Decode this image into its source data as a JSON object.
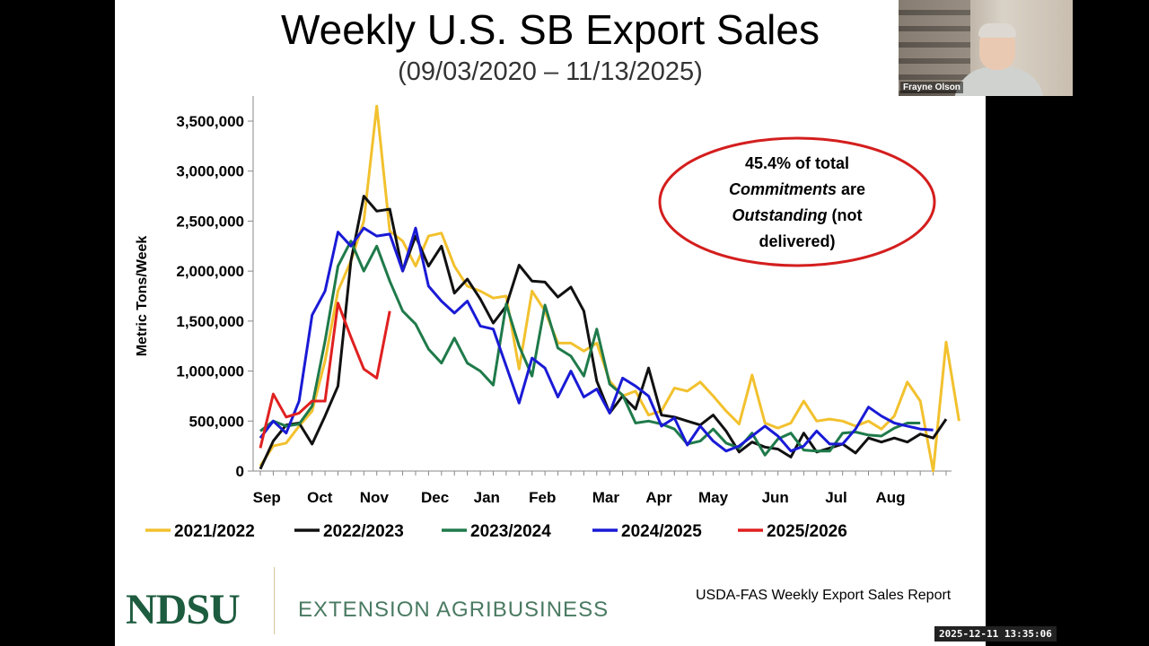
{
  "slide": {
    "title": "Weekly U.S. SB Export Sales",
    "subtitle": "(09/03/2020 – 11/13/2025)",
    "annotation": {
      "line1": "45.4% of total",
      "line2_em": "Commitments",
      "line2_rest": " are",
      "line3_em": "Outstanding",
      "line3_rest": " (not",
      "line4": "delivered)"
    },
    "logo": "NDSU",
    "department": "EXTENSION AGRIBUSINESS",
    "source": "USDA-FAS Weekly Export Sales Report"
  },
  "webcam": {
    "name": "Frayne Olson"
  },
  "timestamp": "2025-12-11 13:35:06",
  "chart_data": {
    "type": "line",
    "ylabel": "Metric Tons/Week",
    "ylim": [
      0,
      3500000
    ],
    "yticks": [
      0,
      500000,
      1000000,
      1500000,
      2000000,
      2500000,
      3000000,
      3500000
    ],
    "ytick_labels": [
      "0",
      "500,000",
      "1,000,000",
      "1,500,000",
      "2,000,000",
      "2,500,000",
      "3,000,000",
      "3,500,000"
    ],
    "x_range": [
      0,
      52
    ],
    "month_labels": [
      "Sep",
      "Oct",
      "Nov",
      "Dec",
      "Jan",
      "Feb",
      "Mar",
      "Apr",
      "May",
      "Jun",
      "Jul",
      "Aug"
    ],
    "month_positions": [
      0.5,
      4.6,
      8.8,
      13.5,
      17.5,
      21.8,
      26.7,
      30.8,
      35.0,
      39.8,
      44.5,
      48.7
    ],
    "grid": false,
    "legend_position": "bottom",
    "series": [
      {
        "name": "2021/2022",
        "color": "#f2c12e",
        "values": [
          50000,
          250000,
          280000,
          450000,
          600000,
          1100000,
          1800000,
          2100000,
          2500000,
          3650000,
          2400000,
          2300000,
          2050000,
          2350000,
          2380000,
          2050000,
          1850000,
          1800000,
          1730000,
          1750000,
          1020000,
          1800000,
          1600000,
          1280000,
          1280000,
          1200000,
          1280000,
          900000,
          750000,
          800000,
          560000,
          600000,
          830000,
          800000,
          890000,
          750000,
          600000,
          470000,
          960000,
          480000,
          430000,
          480000,
          700000,
          500000,
          520000,
          500000,
          450000,
          500000,
          420000,
          550000,
          890000,
          700000,
          0,
          1290000,
          500000
        ]
      },
      {
        "name": "2022/2023",
        "color": "#111111",
        "values": [
          20000,
          300000,
          460000,
          480000,
          270000,
          550000,
          850000,
          2100000,
          2750000,
          2600000,
          2620000,
          2000000,
          2350000,
          2050000,
          2250000,
          1780000,
          1920000,
          1720000,
          1480000,
          1650000,
          2060000,
          1900000,
          1890000,
          1740000,
          1840000,
          1600000,
          900000,
          580000,
          750000,
          620000,
          1030000,
          560000,
          540000,
          500000,
          460000,
          560000,
          400000,
          190000,
          290000,
          240000,
          220000,
          140000,
          380000,
          190000,
          230000,
          270000,
          180000,
          330000,
          290000,
          330000,
          290000,
          370000,
          330000,
          520000
        ]
      },
      {
        "name": "2023/2024",
        "color": "#1f7a4a",
        "values": [
          400000,
          500000,
          450000,
          470000,
          650000,
          1300000,
          2050000,
          2300000,
          2000000,
          2250000,
          1900000,
          1600000,
          1470000,
          1220000,
          1080000,
          1330000,
          1080000,
          1000000,
          860000,
          1670000,
          1250000,
          950000,
          1660000,
          1230000,
          1150000,
          950000,
          1420000,
          870000,
          760000,
          480000,
          500000,
          470000,
          420000,
          270000,
          300000,
          420000,
          280000,
          230000,
          380000,
          160000,
          320000,
          380000,
          210000,
          200000,
          200000,
          380000,
          390000,
          360000,
          350000,
          430000,
          480000,
          480000
        ]
      },
      {
        "name": "2024/2025",
        "color": "#1a1ad6",
        "values": [
          330000,
          500000,
          380000,
          700000,
          1560000,
          1800000,
          2390000,
          2250000,
          2430000,
          2350000,
          2370000,
          2000000,
          2430000,
          1850000,
          1700000,
          1580000,
          1700000,
          1450000,
          1420000,
          1050000,
          680000,
          1130000,
          1030000,
          740000,
          1000000,
          740000,
          820000,
          580000,
          930000,
          850000,
          750000,
          450000,
          530000,
          260000,
          450000,
          300000,
          200000,
          250000,
          350000,
          450000,
          350000,
          200000,
          250000,
          400000,
          270000,
          270000,
          420000,
          640000,
          550000,
          480000,
          450000,
          420000,
          410000
        ]
      },
      {
        "name": "2025/2026",
        "color": "#e02020",
        "values": [
          230000,
          770000,
          540000,
          580000,
          700000,
          700000,
          1680000,
          1340000,
          1020000,
          930000,
          1600000
        ]
      }
    ]
  }
}
